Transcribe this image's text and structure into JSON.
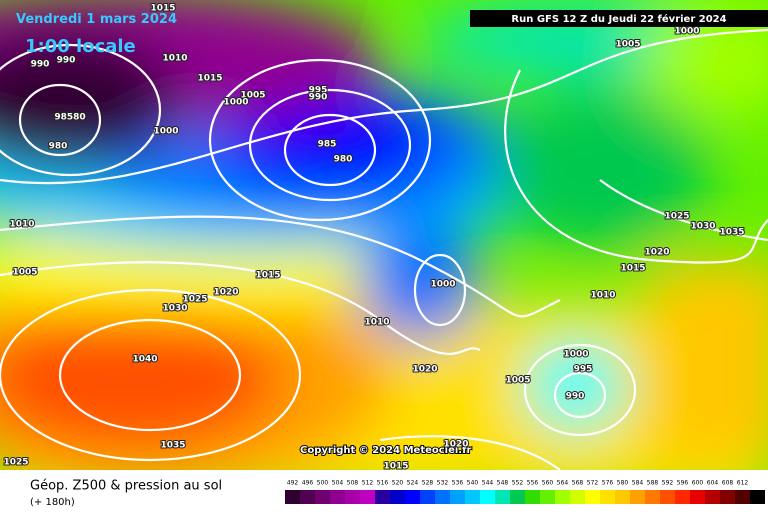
{
  "header": {
    "valid_time": "Vendredi 1 mars 2024",
    "local_time": "1:00 locale",
    "run": "Run GFS 12 Z du Jeudi 22 février 2024"
  },
  "copyright": "Copyright © 2024 Meteociel.fr",
  "legend": {
    "title": "Géop. Z500 & pression au sol",
    "lead": "(+ 180h)",
    "scale": [
      492,
      496,
      500,
      504,
      508,
      512,
      516,
      520,
      524,
      528,
      532,
      536,
      540,
      544,
      548,
      552,
      556,
      560,
      564,
      568,
      572,
      576,
      580,
      584,
      588,
      592,
      596,
      600,
      604,
      608,
      612
    ],
    "colors": [
      "#300030",
      "#500050",
      "#700070",
      "#900090",
      "#a800a8",
      "#c000c0",
      "#2800a0",
      "#0000c8",
      "#0000ff",
      "#0040ff",
      "#0070ff",
      "#00a0ff",
      "#00c8ff",
      "#00ffff",
      "#00e6b4",
      "#00c850",
      "#32dc00",
      "#64f000",
      "#a0ff00",
      "#d2ff00",
      "#ffff00",
      "#ffe100",
      "#ffc800",
      "#ffa000",
      "#ff7800",
      "#ff5000",
      "#ff2800",
      "#e60000",
      "#b40000",
      "#820000",
      "#500000"
    ]
  },
  "isobar_labels": [
    1015,
    990,
    990,
    1010,
    1015,
    1005,
    1000,
    995,
    990,
    "98580",
    1000,
    980,
    985,
    980,
    1005,
    1000,
    1010,
    1005,
    1025,
    1020,
    1030,
    1015,
    1000,
    1010,
    1025,
    1030,
    1035,
    1020,
    1015,
    1010,
    1020,
    1000,
    995,
    1005,
    990,
    1040,
    1035,
    1020,
    1015,
    1025
  ]
}
